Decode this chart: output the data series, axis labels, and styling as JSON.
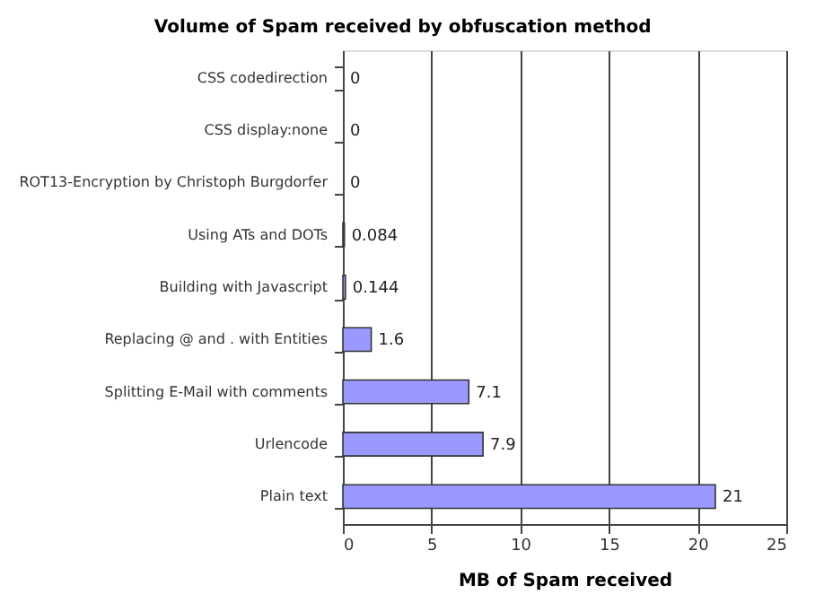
{
  "chart_data": {
    "type": "bar",
    "orientation": "horizontal",
    "title": "Volume of Spam received by obfuscation method",
    "xlabel": "MB of Spam received",
    "categories": [
      "CSS codedirection",
      "CSS display:none",
      "ROT13-Encryption by Christoph Burgdorfer",
      "Using ATs and DOTs",
      "Building with Javascript",
      "Replacing @ and . with Entities",
      "Splitting E-Mail with comments",
      "Urlencode",
      "Plain text"
    ],
    "values": [
      0,
      0,
      0,
      0.084,
      0.144,
      1.6,
      7.1,
      7.9,
      21
    ],
    "color": "#9999ff",
    "xlim": [
      0,
      25
    ],
    "xticks": [
      0,
      5,
      10,
      15,
      20,
      25
    ],
    "grid": "x",
    "data_labels": true
  }
}
